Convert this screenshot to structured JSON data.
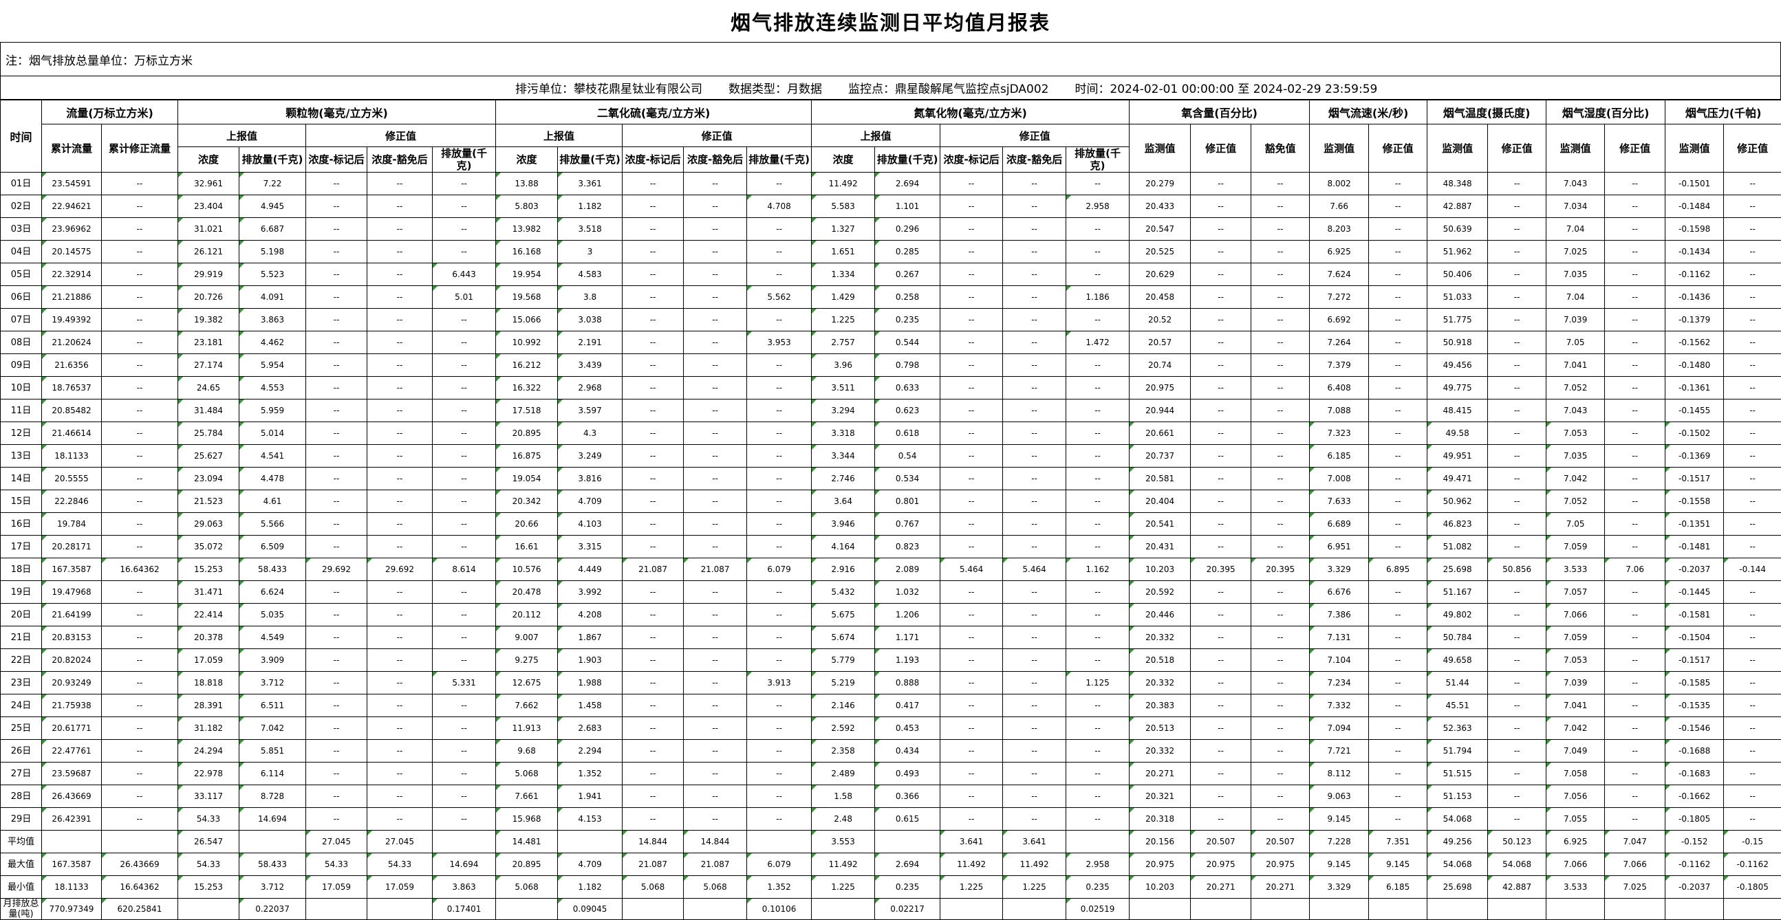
{
  "title": "烟气排放连续监测日平均值月报表",
  "note": "注：烟气排放总量单位：万标立方米",
  "info": {
    "polluter": "排污单位：攀枝花鼎星钛业有限公司",
    "data_type": "数据类型：月数据",
    "station": "监控点：鼎星酸解尾气监控点sjDA002",
    "time_range": "时间：2024-02-01 00:00:00 至 2024-02-29 23:59:59"
  },
  "colors": {
    "flag_triangle": "#2e9b2e",
    "grid": "#000000"
  },
  "header_rows": [
    [
      {
        "t": "时间",
        "rs": 3
      },
      {
        "t": "流量(万标立方米)",
        "cs": 2
      },
      {
        "t": "颗粒物(毫克/立方米)",
        "cs": 5
      },
      {
        "t": "二氧化硫(毫克/立方米)",
        "cs": 5
      },
      {
        "t": "氮氧化物(毫克/立方米)",
        "cs": 5
      },
      {
        "t": "氧含量(百分比)",
        "cs": 3
      },
      {
        "t": "烟气流速(米/秒)",
        "cs": 2
      },
      {
        "t": "烟气温度(摄氏度)",
        "cs": 2
      },
      {
        "t": "烟气湿度(百分比)",
        "cs": 2
      },
      {
        "t": "烟气压力(千帕)",
        "cs": 2
      }
    ],
    [
      {
        "t": "累计流量",
        "rs": 2
      },
      {
        "t": "累计修正流量",
        "rs": 2
      },
      {
        "t": "上报值",
        "cs": 2
      },
      {
        "t": "修正值",
        "cs": 3
      },
      {
        "t": "上报值",
        "cs": 2
      },
      {
        "t": "修正值",
        "cs": 3
      },
      {
        "t": "上报值",
        "cs": 2
      },
      {
        "t": "修正值",
        "cs": 3
      },
      {
        "t": "监测值",
        "rs": 2
      },
      {
        "t": "修正值",
        "rs": 2
      },
      {
        "t": "豁免值",
        "rs": 2
      },
      {
        "t": "监测值",
        "rs": 2
      },
      {
        "t": "修正值",
        "rs": 2
      },
      {
        "t": "监测值",
        "rs": 2
      },
      {
        "t": "修正值",
        "rs": 2
      },
      {
        "t": "监测值",
        "rs": 2
      },
      {
        "t": "修正值",
        "rs": 2
      },
      {
        "t": "监测值",
        "rs": 2
      },
      {
        "t": "修正值",
        "rs": 2
      }
    ],
    [
      {
        "t": "浓度"
      },
      {
        "t": "排放量(千克)"
      },
      {
        "t": "浓度-标记后"
      },
      {
        "t": "浓度-豁免后"
      },
      {
        "t": "排放量(千克)"
      },
      {
        "t": "浓度"
      },
      {
        "t": "排放量(千克)"
      },
      {
        "t": "浓度-标记后"
      },
      {
        "t": "浓度-豁免后"
      },
      {
        "t": "排放量(千克)"
      },
      {
        "t": "浓度"
      },
      {
        "t": "排放量(千克)"
      },
      {
        "t": "浓度-标记后"
      },
      {
        "t": "浓度-豁免后"
      },
      {
        "t": "排放量(千克)"
      }
    ]
  ],
  "rows": [
    {
      "label": "01日",
      "cells": [
        "23.54591",
        "--",
        "32.961",
        "7.22",
        "--",
        "--",
        "--",
        "13.88",
        "3.361",
        "--",
        "--",
        "--",
        "11.492",
        "2.694",
        "--",
        "--",
        "--",
        "20.279",
        "--",
        "--",
        "8.002",
        "--",
        "48.348",
        "--",
        "7.043",
        "--",
        "-0.1501",
        "--"
      ]
    },
    {
      "label": "02日",
      "cells": [
        "22.94621",
        "--",
        "23.404",
        "4.945",
        "--",
        "--",
        "--",
        "5.803",
        "1.182",
        "--",
        "--",
        "4.708",
        "5.583",
        "1.101",
        "--",
        "--",
        "2.958",
        "20.433",
        "--",
        "--",
        "7.66",
        "--",
        "42.887",
        "--",
        "7.034",
        "--",
        "-0.1484",
        "--"
      ]
    },
    {
      "label": "03日",
      "cells": [
        "23.96962",
        "--",
        "31.021",
        "6.687",
        "--",
        "--",
        "--",
        "13.982",
        "3.518",
        "--",
        "--",
        "--",
        "1.327",
        "0.296",
        "--",
        "--",
        "--",
        "20.547",
        "--",
        "--",
        "8.203",
        "--",
        "50.639",
        "--",
        "7.04",
        "--",
        "-0.1598",
        "--"
      ]
    },
    {
      "label": "04日",
      "cells": [
        "20.14575",
        "--",
        "26.121",
        "5.198",
        "--",
        "--",
        "--",
        "16.168",
        "3",
        "--",
        "--",
        "--",
        "1.651",
        "0.285",
        "--",
        "--",
        "--",
        "20.525",
        "--",
        "--",
        "6.925",
        "--",
        "51.962",
        "--",
        "7.025",
        "--",
        "-0.1434",
        "--"
      ]
    },
    {
      "label": "05日",
      "cells": [
        "22.32914",
        "--",
        "29.919",
        "5.523",
        "--",
        "--",
        "6.443",
        "19.954",
        "4.583",
        "--",
        "--",
        "--",
        "1.334",
        "0.267",
        "--",
        "--",
        "--",
        "20.629",
        "--",
        "--",
        "7.624",
        "--",
        "50.406",
        "--",
        "7.035",
        "--",
        "-0.1162",
        "--"
      ]
    },
    {
      "label": "06日",
      "cells": [
        "21.21886",
        "--",
        "20.726",
        "4.091",
        "--",
        "--",
        "5.01",
        "19.568",
        "3.8",
        "--",
        "--",
        "5.562",
        "1.429",
        "0.258",
        "--",
        "--",
        "1.186",
        "20.458",
        "--",
        "--",
        "7.272",
        "--",
        "51.033",
        "--",
        "7.04",
        "--",
        "-0.1436",
        "--"
      ]
    },
    {
      "label": "07日",
      "cells": [
        "19.49392",
        "--",
        "19.382",
        "3.863",
        "--",
        "--",
        "--",
        "15.066",
        "3.038",
        "--",
        "--",
        "--",
        "1.225",
        "0.235",
        "--",
        "--",
        "--",
        "20.52",
        "--",
        "--",
        "6.692",
        "--",
        "51.775",
        "--",
        "7.039",
        "--",
        "-0.1379",
        "--"
      ]
    },
    {
      "label": "08日",
      "cells": [
        "21.20624",
        "--",
        "23.181",
        "4.462",
        "--",
        "--",
        "--",
        "10.992",
        "2.191",
        "--",
        "--",
        "3.953",
        "2.757",
        "0.544",
        "--",
        "--",
        "1.472",
        "20.57",
        "--",
        "--",
        "7.264",
        "--",
        "50.918",
        "--",
        "7.05",
        "--",
        "-0.1562",
        "--"
      ]
    },
    {
      "label": "09日",
      "cells": [
        "21.6356",
        "--",
        "27.174",
        "5.954",
        "--",
        "--",
        "--",
        "16.212",
        "3.439",
        "--",
        "--",
        "--",
        "3.96",
        "0.798",
        "--",
        "--",
        "--",
        "20.74",
        "--",
        "--",
        "7.379",
        "--",
        "49.456",
        "--",
        "7.041",
        "--",
        "-0.1480",
        "--"
      ]
    },
    {
      "label": "10日",
      "cells": [
        "18.76537",
        "--",
        "24.65",
        "4.553",
        "--",
        "--",
        "--",
        "16.322",
        "2.968",
        "--",
        "--",
        "--",
        "3.511",
        "0.633",
        "--",
        "--",
        "--",
        "20.975",
        "--",
        "--",
        "6.408",
        "--",
        "49.775",
        "--",
        "7.052",
        "--",
        "-0.1361",
        "--"
      ]
    },
    {
      "label": "11日",
      "cells": [
        "20.85482",
        "--",
        "31.484",
        "5.959",
        "--",
        "--",
        "--",
        "17.518",
        "3.597",
        "--",
        "--",
        "--",
        "3.294",
        "0.623",
        "--",
        "--",
        "--",
        "20.944",
        "--",
        "--",
        "7.088",
        "--",
        "48.415",
        "--",
        "7.043",
        "--",
        "-0.1455",
        "--"
      ]
    },
    {
      "label": "12日",
      "cells": [
        "21.46614",
        "--",
        "25.784",
        "5.014",
        "--",
        "--",
        "--",
        "20.895",
        "4.3",
        "--",
        "--",
        "--",
        "3.318",
        "0.618",
        "--",
        "--",
        "--",
        "20.661",
        "--",
        "--",
        "7.323",
        "--",
        "49.58",
        "--",
        "7.053",
        "--",
        "-0.1502",
        "--"
      ]
    },
    {
      "label": "13日",
      "cells": [
        "18.1133",
        "--",
        "25.627",
        "4.541",
        "--",
        "--",
        "--",
        "16.875",
        "3.249",
        "--",
        "--",
        "--",
        "3.344",
        "0.54",
        "--",
        "--",
        "--",
        "20.737",
        "--",
        "--",
        "6.185",
        "--",
        "49.951",
        "--",
        "7.035",
        "--",
        "-0.1369",
        "--"
      ]
    },
    {
      "label": "14日",
      "cells": [
        "20.5555",
        "--",
        "23.094",
        "4.478",
        "--",
        "--",
        "--",
        "19.054",
        "3.816",
        "--",
        "--",
        "--",
        "2.746",
        "0.534",
        "--",
        "--",
        "--",
        "20.581",
        "--",
        "--",
        "7.008",
        "--",
        "49.471",
        "--",
        "7.042",
        "--",
        "-0.1517",
        "--"
      ]
    },
    {
      "label": "15日",
      "cells": [
        "22.2846",
        "--",
        "21.523",
        "4.61",
        "--",
        "--",
        "--",
        "20.342",
        "4.709",
        "--",
        "--",
        "--",
        "3.64",
        "0.801",
        "--",
        "--",
        "--",
        "20.404",
        "--",
        "--",
        "7.633",
        "--",
        "50.962",
        "--",
        "7.052",
        "--",
        "-0.1558",
        "--"
      ]
    },
    {
      "label": "16日",
      "cells": [
        "19.784",
        "--",
        "29.063",
        "5.566",
        "--",
        "--",
        "--",
        "20.66",
        "4.103",
        "--",
        "--",
        "--",
        "3.946",
        "0.767",
        "--",
        "--",
        "--",
        "20.541",
        "--",
        "--",
        "6.689",
        "--",
        "46.823",
        "--",
        "7.05",
        "--",
        "-0.1351",
        "--"
      ]
    },
    {
      "label": "17日",
      "cells": [
        "20.28171",
        "--",
        "35.072",
        "6.509",
        "--",
        "--",
        "--",
        "16.61",
        "3.315",
        "--",
        "--",
        "--",
        "4.164",
        "0.823",
        "--",
        "--",
        "--",
        "20.431",
        "--",
        "--",
        "6.951",
        "--",
        "51.082",
        "--",
        "7.059",
        "--",
        "-0.1481",
        "--"
      ]
    },
    {
      "label": "18日",
      "cells": [
        "167.3587",
        "16.64362",
        "15.253",
        "58.433",
        "29.692",
        "29.692",
        "8.614",
        "10.576",
        "4.449",
        "21.087",
        "21.087",
        "6.079",
        "2.916",
        "2.089",
        "5.464",
        "5.464",
        "1.162",
        "10.203",
        "20.395",
        "20.395",
        "3.329",
        "6.895",
        "25.698",
        "50.856",
        "3.533",
        "7.06",
        "-0.2037",
        "-0.144"
      ]
    },
    {
      "label": "19日",
      "cells": [
        "19.47968",
        "--",
        "31.471",
        "6.624",
        "--",
        "--",
        "--",
        "20.478",
        "3.992",
        "--",
        "--",
        "--",
        "5.432",
        "1.032",
        "--",
        "--",
        "--",
        "20.592",
        "--",
        "--",
        "6.676",
        "--",
        "51.167",
        "--",
        "7.057",
        "--",
        "-0.1445",
        "--"
      ]
    },
    {
      "label": "20日",
      "cells": [
        "21.64199",
        "--",
        "22.414",
        "5.035",
        "--",
        "--",
        "--",
        "20.112",
        "4.208",
        "--",
        "--",
        "--",
        "5.675",
        "1.206",
        "--",
        "--",
        "--",
        "20.446",
        "--",
        "--",
        "7.386",
        "--",
        "49.802",
        "--",
        "7.066",
        "--",
        "-0.1581",
        "--"
      ]
    },
    {
      "label": "21日",
      "cells": [
        "20.83153",
        "--",
        "20.378",
        "4.549",
        "--",
        "--",
        "--",
        "9.007",
        "1.867",
        "--",
        "--",
        "--",
        "5.674",
        "1.171",
        "--",
        "--",
        "--",
        "20.332",
        "--",
        "--",
        "7.131",
        "--",
        "50.784",
        "--",
        "7.059",
        "--",
        "-0.1504",
        "--"
      ]
    },
    {
      "label": "22日",
      "cells": [
        "20.82024",
        "--",
        "17.059",
        "3.909",
        "--",
        "--",
        "--",
        "9.275",
        "1.903",
        "--",
        "--",
        "--",
        "5.779",
        "1.193",
        "--",
        "--",
        "--",
        "20.518",
        "--",
        "--",
        "7.104",
        "--",
        "49.658",
        "--",
        "7.053",
        "--",
        "-0.1517",
        "--"
      ]
    },
    {
      "label": "23日",
      "cells": [
        "20.93249",
        "--",
        "18.818",
        "3.712",
        "--",
        "--",
        "5.331",
        "12.675",
        "1.988",
        "--",
        "--",
        "3.913",
        "5.219",
        "0.888",
        "--",
        "--",
        "1.125",
        "20.332",
        "--",
        "--",
        "7.234",
        "--",
        "51.44",
        "--",
        "7.039",
        "--",
        "-0.1585",
        "--"
      ]
    },
    {
      "label": "24日",
      "cells": [
        "21.75938",
        "--",
        "28.391",
        "6.511",
        "--",
        "--",
        "--",
        "7.662",
        "1.458",
        "--",
        "--",
        "--",
        "2.146",
        "0.417",
        "--",
        "--",
        "--",
        "20.383",
        "--",
        "--",
        "7.332",
        "--",
        "45.51",
        "--",
        "7.041",
        "--",
        "-0.1535",
        "--"
      ]
    },
    {
      "label": "25日",
      "cells": [
        "20.61771",
        "--",
        "31.182",
        "7.042",
        "--",
        "--",
        "--",
        "11.913",
        "2.683",
        "--",
        "--",
        "--",
        "2.592",
        "0.453",
        "--",
        "--",
        "--",
        "20.513",
        "--",
        "--",
        "7.094",
        "--",
        "52.363",
        "--",
        "7.042",
        "--",
        "-0.1546",
        "--"
      ]
    },
    {
      "label": "26日",
      "cells": [
        "22.47761",
        "--",
        "24.294",
        "5.851",
        "--",
        "--",
        "--",
        "9.68",
        "2.294",
        "--",
        "--",
        "--",
        "2.358",
        "0.434",
        "--",
        "--",
        "--",
        "20.332",
        "--",
        "--",
        "7.721",
        "--",
        "51.794",
        "--",
        "7.049",
        "--",
        "-0.1688",
        "--"
      ]
    },
    {
      "label": "27日",
      "cells": [
        "23.59687",
        "--",
        "22.978",
        "6.114",
        "--",
        "--",
        "--",
        "5.068",
        "1.352",
        "--",
        "--",
        "--",
        "2.489",
        "0.493",
        "--",
        "--",
        "--",
        "20.271",
        "--",
        "--",
        "8.112",
        "--",
        "51.515",
        "--",
        "7.058",
        "--",
        "-0.1683",
        "--"
      ]
    },
    {
      "label": "28日",
      "cells": [
        "26.43669",
        "--",
        "33.117",
        "8.728",
        "--",
        "--",
        "--",
        "7.661",
        "1.941",
        "--",
        "--",
        "--",
        "1.58",
        "0.366",
        "--",
        "--",
        "--",
        "20.321",
        "--",
        "--",
        "9.063",
        "--",
        "51.153",
        "--",
        "7.056",
        "--",
        "-0.1662",
        "--"
      ]
    },
    {
      "label": "29日",
      "cells": [
        "26.42391",
        "--",
        "54.33",
        "14.694",
        "--",
        "--",
        "--",
        "15.968",
        "4.153",
        "--",
        "--",
        "--",
        "2.48",
        "0.615",
        "--",
        "--",
        "--",
        "20.318",
        "--",
        "--",
        "9.145",
        "--",
        "54.068",
        "--",
        "7.055",
        "--",
        "-0.1805",
        "--"
      ]
    },
    {
      "label": "平均值",
      "cells": [
        "",
        "",
        "26.547",
        "",
        "27.045",
        "27.045",
        "",
        "14.481",
        "",
        "14.844",
        "14.844",
        "",
        "3.553",
        "",
        "3.641",
        "3.641",
        "",
        "20.156",
        "20.507",
        "20.507",
        "7.228",
        "7.351",
        "49.256",
        "50.123",
        "6.925",
        "7.047",
        "-0.152",
        "-0.15"
      ]
    },
    {
      "label": "最大值",
      "cells": [
        "167.3587",
        "26.43669",
        "54.33",
        "58.433",
        "54.33",
        "54.33",
        "14.694",
        "20.895",
        "4.709",
        "21.087",
        "21.087",
        "6.079",
        "11.492",
        "2.694",
        "11.492",
        "11.492",
        "2.958",
        "20.975",
        "20.975",
        "20.975",
        "9.145",
        "9.145",
        "54.068",
        "54.068",
        "7.066",
        "7.066",
        "-0.1162",
        "-0.1162"
      ]
    },
    {
      "label": "最小值",
      "cells": [
        "18.1133",
        "16.64362",
        "15.253",
        "3.712",
        "17.059",
        "17.059",
        "3.863",
        "5.068",
        "1.182",
        "5.068",
        "5.068",
        "1.352",
        "1.225",
        "0.235",
        "1.225",
        "1.225",
        "0.235",
        "10.203",
        "20.271",
        "20.271",
        "3.329",
        "6.185",
        "25.698",
        "42.887",
        "3.533",
        "7.025",
        "-0.2037",
        "-0.1805"
      ]
    },
    {
      "label": "月排放总量(吨)",
      "cells": [
        "770.97349",
        "620.25841",
        "",
        "0.22037",
        "",
        "",
        "0.17401",
        "",
        "0.09045",
        "",
        "",
        "0.10106",
        "",
        "0.02217",
        "",
        "",
        "0.02519",
        "",
        "",
        "",
        "",
        "",
        "",
        "",
        "",
        "",
        "",
        ""
      ]
    }
  ]
}
